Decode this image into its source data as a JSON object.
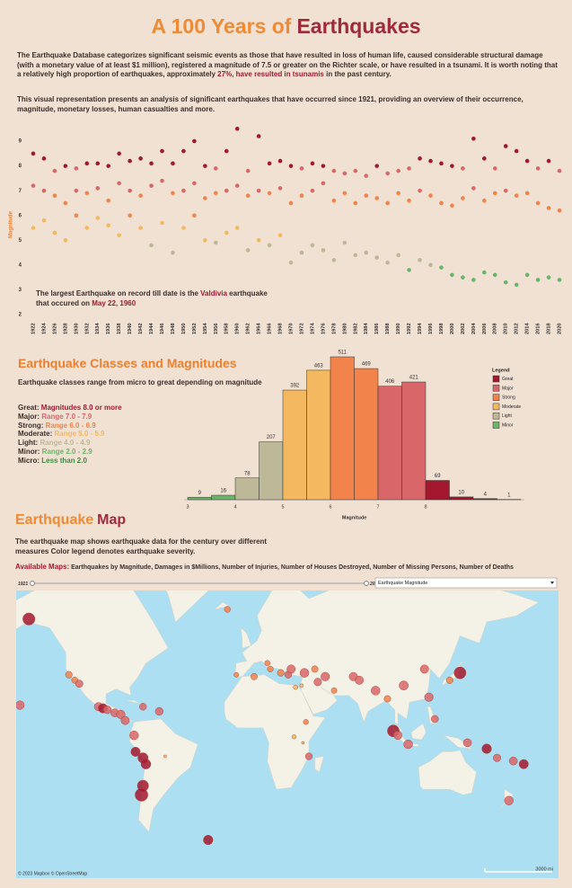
{
  "header": {
    "title": [
      "A 100 Years of",
      "Earthquakes"
    ]
  },
  "intro": [
    [
      "The Earthquake Database categorizes significant seismic events as those that have resulted in loss of human life, caused considerable structural damage (with a monetary value of at least $1 million), registered a magnitude of 7.5 or greater on the Richter scale, or have resulted in a tsunami. It is worth noting that a relatively high proportion of earthquakes, approximately ",
      "27%, have resulted in tsunamis",
      " in the past century."
    ],
    [
      "This visual representation presents an analysis of significant earthquakes that have occurred since 1921, providing an overview of their occurrence, magnitude, monetary losses, human casualties and more."
    ]
  ],
  "classes": {
    "title": "Earthquake Classes and Magnitudes",
    "description": "Earthquake classes range from micro to great depending on magnitude",
    "items": [
      {
        "term": "Great:",
        "name": "Great",
        "range": "Magnitudes 8.0 or more",
        "min": 8,
        "color": "#a3172f"
      },
      {
        "term": "Major:",
        "name": "Major",
        "range": "Range 7.0 - 7.9",
        "min": 7,
        "color": "#d9676a"
      },
      {
        "term": "Strong:",
        "name": "Strong",
        "range": "Range 6.0 - 6.9",
        "min": 6,
        "color": "#f2834a"
      },
      {
        "term": "Moderate:",
        "name": "Moderate",
        "range": "Range 5.0 - 5.9",
        "min": 5,
        "color": "#f3b860"
      },
      {
        "term": "Light:",
        "name": "Light",
        "range": "Range 4.0 - 4.9",
        "min": 4,
        "color": "#bdb898"
      },
      {
        "term": "Minor:",
        "name": "Minor",
        "range": "Range 2.0 - 2.9",
        "min": 2,
        "color": "#69b56a"
      },
      {
        "term": "Micro:",
        "range": "Less than 2.0",
        "color": "#3d8b3d"
      }
    ]
  },
  "chart_data": [
    {
      "type": "scatter",
      "y_label": "Magnitude",
      "x": [
        1922,
        1924,
        1926,
        1928,
        1930,
        1932,
        1934,
        1936,
        1938,
        1940,
        1942,
        1944,
        1946,
        1948,
        1950,
        1952,
        1954,
        1956,
        1958,
        1960,
        1962,
        1964,
        1966,
        1968,
        1970,
        1972,
        1974,
        1976,
        1978,
        1980,
        1982,
        1984,
        1986,
        1988,
        1990,
        1992,
        1994,
        1996,
        1998,
        2000,
        2002,
        2004,
        2006,
        2008,
        2010,
        2012,
        2014,
        2016,
        2018,
        2020,
        1922,
        1924,
        1926,
        1928,
        1930,
        1932,
        1934,
        1936,
        1938,
        1940,
        1942,
        1944,
        1946,
        1948,
        1950,
        1952,
        1954,
        1956,
        1958,
        1960,
        1962,
        1964,
        1966,
        1968,
        1970,
        1972,
        1974,
        1976,
        1978,
        1980,
        1982,
        1984,
        1986,
        1988,
        1990,
        1992,
        1994,
        1996,
        1998,
        2000,
        2002,
        2004,
        2006,
        2008,
        2010,
        2012,
        2014,
        2016,
        2018,
        2020,
        1922,
        1924,
        1926,
        1928,
        1930,
        1932,
        1934,
        1936,
        1938,
        1940,
        1942,
        1944,
        1946,
        1948,
        1950,
        1952,
        1954,
        1956,
        1958,
        1960,
        1962,
        1964,
        1966,
        1968,
        1970,
        1972,
        1974,
        1976,
        1978,
        1980,
        1982,
        1984,
        1986,
        1988,
        1990,
        1992,
        1994,
        1996,
        1998,
        2000,
        2002,
        2004,
        2006,
        2008,
        2010,
        2012,
        2014,
        2016,
        2018,
        2020
      ],
      "values": [
        8.5,
        8.3,
        7.8,
        8.0,
        7.9,
        8.1,
        8.1,
        8.0,
        8.5,
        8.2,
        8.3,
        8.1,
        8.6,
        8.1,
        8.6,
        9.0,
        8.0,
        7.9,
        8.6,
        9.5,
        7.8,
        9.2,
        8.1,
        8.2,
        8.0,
        7.9,
        8.1,
        8.0,
        7.8,
        7.7,
        7.8,
        7.6,
        8.0,
        7.7,
        7.8,
        7.9,
        8.3,
        8.2,
        8.1,
        8.0,
        7.9,
        9.1,
        8.3,
        7.9,
        8.8,
        8.6,
        8.2,
        7.9,
        8.2,
        7.8,
        7.2,
        7.0,
        6.8,
        6.5,
        7.0,
        6.9,
        7.1,
        6.6,
        7.3,
        7.0,
        6.8,
        7.2,
        7.4,
        6.9,
        7.0,
        7.3,
        6.7,
        6.9,
        7.0,
        7.2,
        6.8,
        7.0,
        6.9,
        7.1,
        6.5,
        6.8,
        7.0,
        7.3,
        6.6,
        6.9,
        6.5,
        6.8,
        6.7,
        6.5,
        6.9,
        6.6,
        7.0,
        6.8,
        6.5,
        6.4,
        6.7,
        7.1,
        6.6,
        6.9,
        7.0,
        6.8,
        6.9,
        6.5,
        6.3,
        6.2,
        5.5,
        5.8,
        5.3,
        5.0,
        6.0,
        5.5,
        5.9,
        5.6,
        5.2,
        6.0,
        5.5,
        4.8,
        5.7,
        4.5,
        5.5,
        6.0,
        5.0,
        4.9,
        5.3,
        5.5,
        4.6,
        5.0,
        4.8,
        5.2,
        4.1,
        4.5,
        4.8,
        4.6,
        4.2,
        4.9,
        4.4,
        4.5,
        4.3,
        4.1,
        4.4,
        3.8,
        4.2,
        4.0,
        3.9,
        3.6,
        3.5,
        3.4,
        3.7,
        3.6,
        3.3,
        3.2,
        3.6,
        3.4,
        3.5,
        3.4
      ],
      "xlim": [
        1921,
        2021
      ],
      "ylim": [
        1.8,
        9.8
      ],
      "xticks": [
        1922,
        1924,
        1926,
        1928,
        1930,
        1932,
        1934,
        1936,
        1938,
        1940,
        1942,
        1944,
        1946,
        1948,
        1950,
        1952,
        1954,
        1956,
        1958,
        1960,
        1962,
        1964,
        1966,
        1968,
        1970,
        1972,
        1974,
        1976,
        1978,
        1980,
        1982,
        1984,
        1986,
        1988,
        1990,
        1992,
        1994,
        1996,
        1998,
        2000,
        2002,
        2004,
        2006,
        2008,
        2010,
        2012,
        2014,
        2016,
        2018,
        2020
      ],
      "yticks": [
        2,
        3,
        4,
        5,
        6,
        7,
        8,
        9
      ],
      "annotation": [
        [
          "The largest Earthquake on record till date is the ",
          "Valdivia",
          " earthquake"
        ],
        [
          "that occured on ",
          "May 22, 1960"
        ]
      ]
    },
    {
      "type": "histogram",
      "x_label": "Magnitude",
      "bins": [
        3,
        3.5,
        4,
        4.5,
        5,
        5.5,
        6,
        6.5,
        7,
        7.5,
        8,
        8.5,
        9,
        9.5,
        10
      ],
      "values": [
        9,
        16,
        78,
        207,
        392,
        463,
        511,
        469,
        406,
        421,
        69,
        10,
        4,
        1
      ],
      "xlim": [
        3,
        10
      ],
      "xticks": [
        3,
        4,
        5,
        6,
        7,
        8
      ],
      "legend": {
        "title": "Legend",
        "position": "top-right"
      }
    }
  ],
  "map": {
    "title": [
      "Earthquake",
      "Map"
    ],
    "description": "The earthquake map shows earthquake data for the century over different measures Color legend denotes earthquake severity.",
    "available_label": "Available Maps:",
    "available_list": "Earthquakes by Magnitude, Damages in $Millions, Number of Injuries, Number of Houses Destroyed, Number of Missing Persons, Number of Deaths",
    "slider": {
      "start": 1921,
      "end": 2020
    },
    "dropdown": "Earthquake Magnitude",
    "attribution": "© 2023 Mapbox © OpenStreetMap",
    "scale": "3000 mi",
    "lon": [
      -149,
      -155,
      -122,
      -118,
      -115,
      -102,
      -99,
      -96,
      -91,
      -87,
      -84,
      -72,
      -61,
      -78,
      -77,
      -72,
      -70,
      -72,
      -73,
      -57,
      -28,
      -15,
      -9,
      3,
      12,
      14,
      21,
      26,
      28,
      37,
      44,
      51,
      46,
      57,
      35,
      31,
      30,
      36,
      38,
      40,
      70,
      74,
      85,
      93,
      97,
      100,
      107,
      104,
      118,
      121,
      125,
      135,
      142,
      147,
      160,
      167,
      178,
      -175,
      175
    ],
    "lat": [
      61,
      19,
      37,
      34,
      32,
      18,
      17,
      16,
      14,
      13,
      9,
      18,
      15,
      -1,
      -12,
      -16,
      -20,
      -33,
      -38,
      -15,
      -58,
      64,
      37,
      36,
      43,
      40,
      38,
      37,
      40,
      38,
      40,
      36,
      33,
      28,
      31,
      30,
      -2,
      -6,
      8,
      -15,
      36,
      34,
      28,
      23,
      2,
      -1,
      -7,
      31,
      40,
      24,
      10,
      34,
      38,
      -6,
      -10,
      -16,
      -18,
      -20,
      -41
    ],
    "magnitude": [
      9.2,
      7.7,
      6.9,
      6.7,
      7.2,
      7.6,
      8.0,
      7.4,
      7.5,
      7.7,
      7.6,
      7.0,
      7.4,
      7.8,
      8.0,
      8.4,
      8.2,
      8.8,
      9.5,
      5.2,
      8.1,
      6.6,
      6.0,
      6.8,
      6.3,
      6.5,
      6.9,
      7.0,
      7.6,
      7.8,
      6.8,
      7.7,
      7.3,
      6.4,
      5.5,
      5.9,
      5.8,
      5.0,
      6.2,
      7.0,
      7.6,
      7.6,
      7.8,
      6.8,
      9.1,
      7.6,
      7.8,
      7.9,
      7.6,
      7.7,
      7.1,
      6.9,
      9.1,
      7.5,
      8.1,
      7.3,
      7.5,
      8.0,
      7.8
    ]
  }
}
